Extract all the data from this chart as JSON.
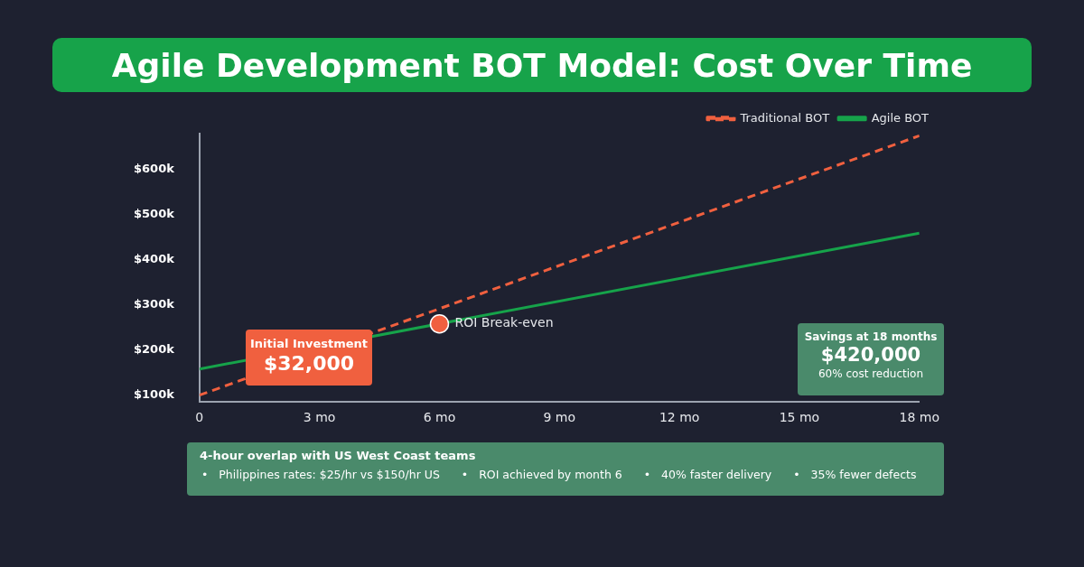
{
  "chart_data": {
    "type": "line",
    "title": "Agile Development BOT Model: Cost Over Time",
    "xlim": [
      0,
      18
    ],
    "xticks": [
      {
        "value": 0,
        "label": "0"
      },
      {
        "value": 3,
        "label": "3 mo"
      },
      {
        "value": 6,
        "label": "6 mo"
      },
      {
        "value": 9,
        "label": "9 mo"
      },
      {
        "value": 12,
        "label": "12 mo"
      },
      {
        "value": 15,
        "label": "15 mo"
      },
      {
        "value": 18,
        "label": "18 mo"
      }
    ],
    "ylim": [
      85000,
      680000
    ],
    "yticks": [
      {
        "value": 100000,
        "label": "$100k"
      },
      {
        "value": 200000,
        "label": "$200k"
      },
      {
        "value": 300000,
        "label": "$300k"
      },
      {
        "value": 400000,
        "label": "$400k"
      },
      {
        "value": 500000,
        "label": "$500k"
      },
      {
        "value": 600000,
        "label": "$600k"
      }
    ],
    "grid": false,
    "legend": "top right",
    "series": [
      {
        "name": "Traditional BOT",
        "color": "#f0603f",
        "line_style": "dashed",
        "x": [
          0,
          18
        ],
        "values": [
          100000,
          675000
        ]
      },
      {
        "name": "Agile BOT",
        "color": "#16a34a",
        "line_style": "solid",
        "x": [
          0,
          18
        ],
        "values": [
          158000,
          459000
        ]
      },
      {
        "type": "scatter",
        "color": "#f0603f",
        "marker": "circle",
        "x": [
          6
        ],
        "values": [
          258000
        ]
      }
    ],
    "annotations": [
      "Initial Investment",
      "$32,000",
      {
        "text": "ROI Break-even",
        "x": 6,
        "y": 258000
      },
      "Savings at 18 months",
      "$420,000",
      "60% cost reduction",
      "4-hour overlap with US West Coast teams",
      "•   Philippines rates: $25/hr vs $150/hr US",
      "•   ROI achieved by month 6",
      "•   40% faster delivery",
      "•   35% fewer defects"
    ]
  }
}
